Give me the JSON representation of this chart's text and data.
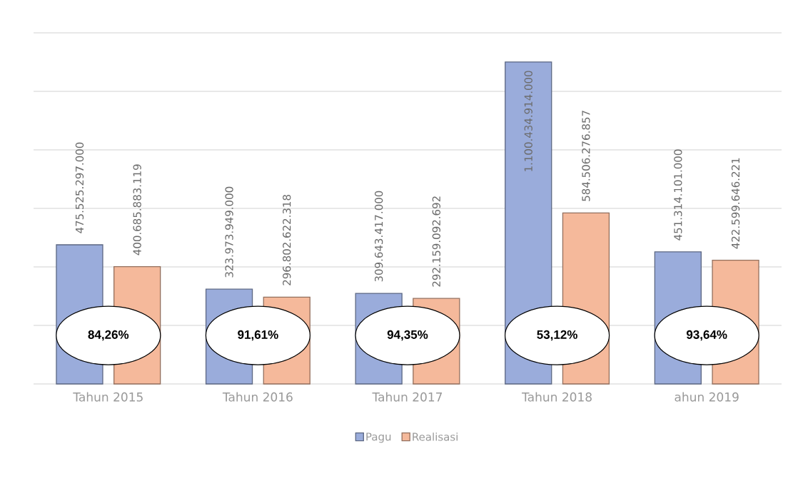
{
  "chart_data": {
    "type": "bar",
    "categories": [
      "Tahun 2015",
      "Tahun 2016",
      "Tahun 2017",
      "Tahun 2018",
      "ahun 2019"
    ],
    "series": [
      {
        "name": "Pagu",
        "color": "#9aacdb",
        "values": [
          475525297000,
          323973949000,
          309643417000,
          1100434914000,
          451314101000
        ],
        "value_labels": [
          "475.525.297.000",
          "323.973.949.000",
          "309.643.417.000",
          "1.100.434.914.000",
          "451.314.101.000"
        ]
      },
      {
        "name": "Realisasi",
        "color": "#f5b99b",
        "values": [
          400685883119,
          296802622318,
          292159092692,
          584506276857,
          422599646221
        ],
        "value_labels": [
          "400.685.883.119",
          "296.802.622.318",
          "292.159.092.692",
          "584.506.276.857",
          "422.599.646.221"
        ]
      }
    ],
    "ylim": [
      0,
      1200000000000
    ],
    "yticks": [
      {
        "value": 0,
        "label": null
      },
      {
        "value": 200000000000,
        "label": null
      },
      {
        "value": 400000000000,
        "label": null
      },
      {
        "value": 600000000000,
        "label": null
      },
      {
        "value": 800000000000,
        "label": null
      },
      {
        "value": 1000000000000,
        "label": null
      },
      {
        "value": 1200000000000,
        "label": null
      }
    ],
    "tick_labels": "x",
    "grid": "y",
    "legend": "bottom",
    "annotations": [
      "84,26%",
      "91,61%",
      "94,35%",
      "53,12%",
      "93,64%"
    ]
  }
}
